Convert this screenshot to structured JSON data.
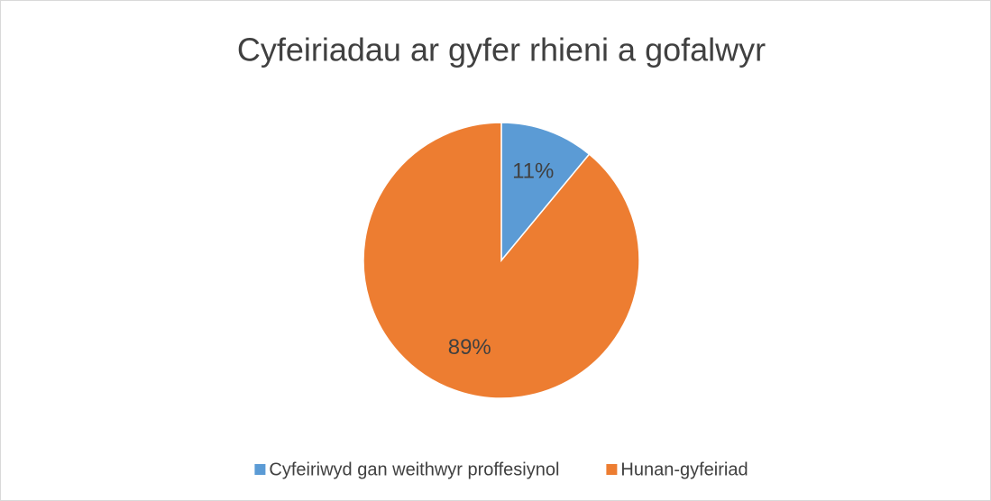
{
  "chart_data": {
    "type": "pie",
    "title": "Cyfeiriadau ar gyfer rhieni a gofalwyr",
    "categories": [
      "Cyfeiriwyd gan weithwyr proffesiynol",
      "Hunan-gyfeiriad"
    ],
    "values": [
      11,
      89
    ],
    "value_labels": [
      "11%",
      "89%"
    ],
    "colors": [
      "#5b9bd5",
      "#ed7d31"
    ],
    "legend": "bottom"
  }
}
